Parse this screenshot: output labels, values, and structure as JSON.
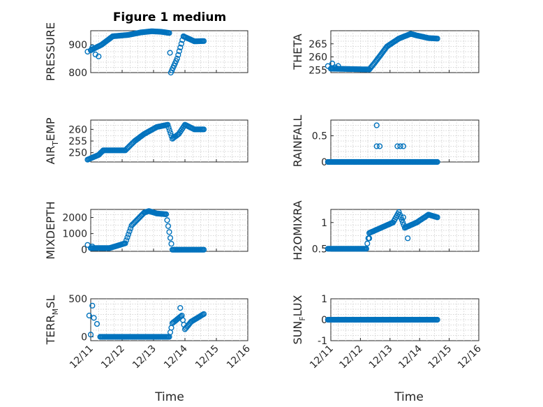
{
  "title": "Figure 1 medium",
  "colors": {
    "marker": "#0072BD",
    "axes": "#262626",
    "grid": "#c8c8c8"
  },
  "chart_data": [
    {
      "type": "scatter",
      "ylabel": "PRESSURE",
      "ylim": [
        800,
        950
      ],
      "yticks": [
        800,
        900
      ],
      "xlim": [
        0,
        5
      ],
      "grid": true,
      "anchors": [
        [
          0,
          880
        ],
        [
          0.35,
          900
        ],
        [
          0.7,
          930
        ],
        [
          1.2,
          935
        ],
        [
          1.6,
          944
        ],
        [
          1.95,
          948
        ],
        [
          2.25,
          946
        ],
        [
          2.5,
          942
        ],
        [
          2.55,
          800
        ],
        [
          2.75,
          850
        ],
        [
          2.95,
          930
        ],
        [
          3.3,
          912
        ],
        [
          3.6,
          913
        ]
      ],
      "scatter": [
        [
          -0.1,
          875
        ],
        [
          0.05,
          890
        ],
        [
          0.15,
          865
        ],
        [
          0.25,
          858
        ]
      ]
    },
    {
      "type": "scatter",
      "ylabel": "THETA",
      "ylim": [
        254,
        270
      ],
      "yticks": [
        255,
        260,
        265
      ],
      "xlim": [
        0,
        5
      ],
      "grid": true,
      "anchors": [
        [
          0,
          255.5
        ],
        [
          1.3,
          255.2
        ],
        [
          1.5,
          258
        ],
        [
          1.9,
          264
        ],
        [
          2.3,
          267
        ],
        [
          2.7,
          268.8
        ],
        [
          2.9,
          268.2
        ],
        [
          3.3,
          267.2
        ],
        [
          3.6,
          267
        ]
      ],
      "scatter": [
        [
          -0.1,
          256.5
        ],
        [
          0.05,
          257.5
        ],
        [
          0.15,
          256
        ],
        [
          0.25,
          256.5
        ]
      ]
    },
    {
      "type": "scatter",
      "ylabel": "AIR_TEMP",
      "ylim": [
        246,
        264
      ],
      "yticks": [
        250,
        255,
        260
      ],
      "xlim": [
        0,
        5
      ],
      "grid": true,
      "anchors": [
        [
          -0.1,
          247
        ],
        [
          0.25,
          249
        ],
        [
          0.4,
          251
        ],
        [
          1.1,
          251
        ],
        [
          1.4,
          255
        ],
        [
          1.7,
          258
        ],
        [
          2.1,
          261
        ],
        [
          2.45,
          262
        ],
        [
          2.6,
          256
        ],
        [
          2.8,
          258
        ],
        [
          3,
          262
        ],
        [
          3.3,
          260
        ],
        [
          3.6,
          260
        ]
      ],
      "scatter": []
    },
    {
      "type": "scatter",
      "ylabel": "RAINFALL",
      "ylim": [
        0,
        0.8
      ],
      "yticks": [
        0,
        0.5
      ],
      "xlim": [
        0,
        5
      ],
      "grid": true,
      "anchors": [
        [
          -0.1,
          0
        ],
        [
          3.6,
          0
        ]
      ],
      "scatter": [
        [
          1.55,
          0.7
        ],
        [
          1.55,
          0.3
        ],
        [
          1.65,
          0.3
        ],
        [
          2.25,
          0.3
        ],
        [
          2.35,
          0.3
        ],
        [
          2.45,
          0.3
        ]
      ]
    },
    {
      "type": "scatter",
      "ylabel": "MIXDEPTH",
      "ylim": [
        -100,
        2500
      ],
      "yticks": [
        0,
        1000,
        2000
      ],
      "xlim": [
        0,
        5
      ],
      "grid": true,
      "anchors": [
        [
          0,
          100
        ],
        [
          0.6,
          100
        ],
        [
          1.1,
          400
        ],
        [
          1.3,
          1500
        ],
        [
          1.7,
          2300
        ],
        [
          1.85,
          2400
        ],
        [
          2.1,
          2250
        ],
        [
          2.4,
          2200
        ],
        [
          2.6,
          0
        ],
        [
          3.6,
          0
        ]
      ],
      "scatter": [
        [
          -0.1,
          300
        ],
        [
          0.05,
          200
        ]
      ]
    },
    {
      "type": "scatter",
      "ylabel": "H2OMIXRA",
      "ylim": [
        0.45,
        1.25
      ],
      "yticks": [
        0.5,
        1
      ],
      "xlim": [
        0,
        5
      ],
      "grid": true,
      "anchors": [
        [
          -0.1,
          0.5
        ],
        [
          1.2,
          0.5
        ],
        [
          1.3,
          0.8
        ],
        [
          1.7,
          0.9
        ],
        [
          2.1,
          1.0
        ],
        [
          2.3,
          1.2
        ],
        [
          2.5,
          0.9
        ],
        [
          2.9,
          1.0
        ],
        [
          3.3,
          1.15
        ],
        [
          3.6,
          1.1
        ]
      ],
      "scatter": [
        [
          1.3,
          0.7
        ],
        [
          2.6,
          0.7
        ],
        [
          2.45,
          1.1
        ]
      ]
    },
    {
      "type": "scatter",
      "ylabel": "TERR_MSL",
      "ylim": [
        -50,
        500
      ],
      "yticks": [
        0,
        500
      ],
      "xlim": [
        0,
        5
      ],
      "grid": true,
      "anchors": [
        [
          0.3,
          0
        ],
        [
          2.5,
          0
        ],
        [
          2.6,
          180
        ],
        [
          2.9,
          280
        ],
        [
          3.0,
          100
        ],
        [
          3.2,
          200
        ],
        [
          3.6,
          300
        ]
      ],
      "scatter": [
        [
          -0.15,
          170
        ],
        [
          -0.05,
          280
        ],
        [
          0.05,
          410
        ],
        [
          0.1,
          250
        ],
        [
          0.2,
          170
        ],
        [
          2.85,
          380
        ],
        [
          0,
          30
        ]
      ]
    },
    {
      "type": "scatter",
      "ylabel": "SUN_FLUX",
      "ylim": [
        -1,
        1
      ],
      "yticks": [
        -1,
        0,
        1
      ],
      "xlim": [
        0,
        5
      ],
      "grid": true,
      "anchors": [
        [
          -0.1,
          0
        ],
        [
          3.6,
          0
        ]
      ],
      "scatter": []
    }
  ],
  "x_ticklabels": [
    "12/11",
    "12/12",
    "12/13",
    "12/14",
    "12/15",
    "12/16"
  ],
  "xlabels": [
    "Time",
    "Time"
  ],
  "ylabels_render": [
    [
      "PRESSURE",
      "",
      ""
    ],
    [
      "THETA",
      "",
      ""
    ],
    [
      "AIR",
      "T",
      "EMP"
    ],
    [
      "RAINFALL",
      "",
      ""
    ],
    [
      "MIXDEPTH",
      "",
      ""
    ],
    [
      "H2OMIXRA",
      "",
      ""
    ],
    [
      "TERR",
      "M",
      "SL"
    ],
    [
      "SUN",
      "F",
      "LUX"
    ]
  ]
}
